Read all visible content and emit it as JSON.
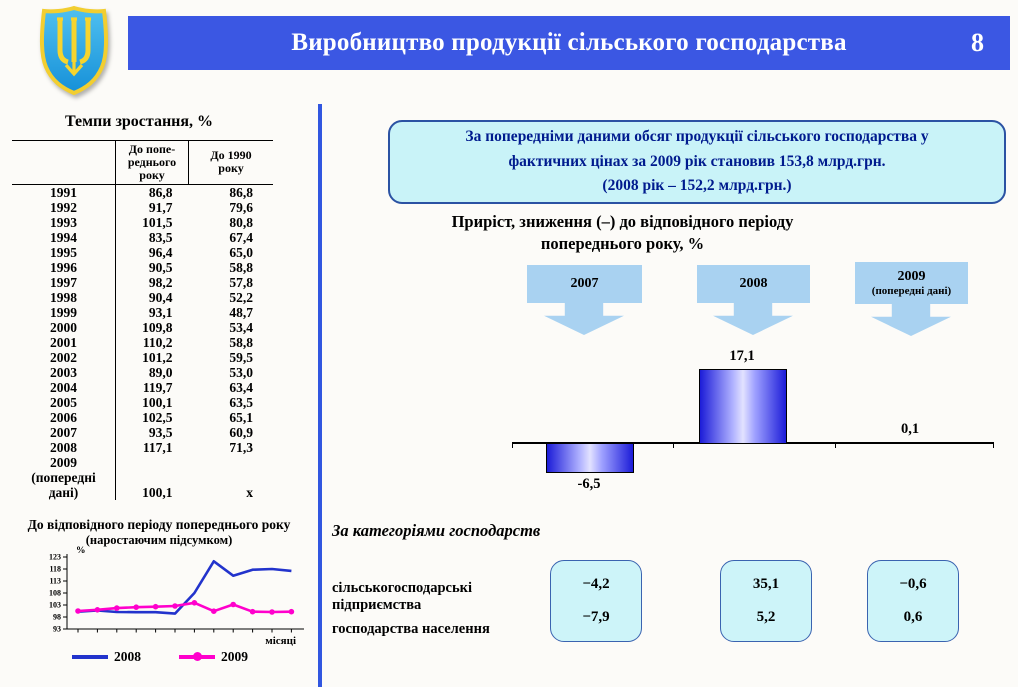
{
  "header": {
    "title": "Виробництво продукції сільського господарства",
    "page_number": "8"
  },
  "colors": {
    "accent_blue": "#3B57E3",
    "divider_blue": "#3156E0",
    "light_blue": "#A9D2F1",
    "cyan_box_bg": "#CDF4F9",
    "cyan_box_border": "#3A63B0",
    "info_text_navy": "#001B8E",
    "bar_edge_blue": "#1C1CD8",
    "series_2008": "#2233CC",
    "series_2009": "#FF00CC",
    "emblem_shield_blue": "#2BA3E4",
    "emblem_trident_yellow": "#F6D42E"
  },
  "emblem": {
    "name": "ukraine-trident-coat-of-arms"
  },
  "info_box": {
    "text": "За попередніми даними обсяг продукції сільського господарства у\nфактичних цінах за 2009 рік становив 153,8 млрд.грн.\n(2008 рік – 152,2 млрд.грн.)"
  },
  "year_boxes": [
    {
      "label": "2007",
      "sublabel": ""
    },
    {
      "label": "2008",
      "sublabel": ""
    },
    {
      "label": "2009",
      "sublabel": "(попередні дані)"
    }
  ],
  "categories_section": {
    "title": "За категоріями господарств",
    "row_labels": [
      "сільськогосподарські\nпідприємства",
      "господарства населення"
    ],
    "boxes": [
      [
        "−4,2",
        "−7,9"
      ],
      [
        "35,1",
        "5,2"
      ],
      [
        "−0,6",
        "0,6"
      ]
    ]
  },
  "chart_data": [
    {
      "type": "table",
      "title": "Темпи зростання, %",
      "columns": [
        "",
        "До попе-\nреднього\nроку",
        "До 1990\nроку"
      ],
      "rows": [
        [
          "1991",
          "86,8",
          "86,8"
        ],
        [
          "1992",
          "91,7",
          "79,6"
        ],
        [
          "1993",
          "101,5",
          "80,8"
        ],
        [
          "1994",
          "83,5",
          "67,4"
        ],
        [
          "1995",
          "96,4",
          "65,0"
        ],
        [
          "1996",
          "90,5",
          "58,8"
        ],
        [
          "1997",
          "98,2",
          "57,8"
        ],
        [
          "1998",
          "90,4",
          "52,2"
        ],
        [
          "1999",
          "93,1",
          "48,7"
        ],
        [
          "2000",
          "109,8",
          "53,4"
        ],
        [
          "2001",
          "110,2",
          "58,8"
        ],
        [
          "2002",
          "101,2",
          "59,5"
        ],
        [
          "2003",
          "89,0",
          "53,0"
        ],
        [
          "2004",
          "119,7",
          "63,4"
        ],
        [
          "2005",
          "100,1",
          "63,5"
        ],
        [
          "2006",
          "102,5",
          "65,1"
        ],
        [
          "2007",
          "93,5",
          "60,9"
        ],
        [
          "2008",
          "117,1",
          "71,3"
        ],
        [
          "2009\n(попередні\nдані)",
          "100,1",
          "х"
        ]
      ]
    },
    {
      "type": "line",
      "title": "До відповідного періоду попереднього року",
      "subtitle": "(наростаючим підсумком)",
      "ylabel": "%",
      "xlabel": "місяці",
      "ylim": [
        93,
        123
      ],
      "yticks": [
        93,
        98,
        103,
        108,
        113,
        118,
        123
      ],
      "x": [
        1,
        2,
        3,
        4,
        5,
        6,
        7,
        8,
        9,
        10,
        11,
        12
      ],
      "grid": false,
      "legend_position": "bottom",
      "series": [
        {
          "name": "2008",
          "color": "#2233CC",
          "marker": "none",
          "values": [
            100.2,
            100.7,
            100.1,
            100.0,
            100.0,
            99.4,
            108.0,
            121.2,
            115.2,
            117.7,
            118.0,
            117.2
          ]
        },
        {
          "name": "2009",
          "color": "#FF00CC",
          "marker": "circle",
          "values": [
            100.5,
            101.0,
            101.7,
            102.1,
            102.3,
            102.6,
            103.9,
            100.4,
            103.2,
            100.2,
            100.1,
            100.2
          ]
        }
      ]
    },
    {
      "type": "bar",
      "title": "Приріст, зниження (–) до відповідного періоду\nпопереднього року, %",
      "categories": [
        "2007",
        "2008",
        "2009 (попередні дані)"
      ],
      "values": [
        -6.5,
        17.1,
        0.1
      ],
      "value_labels": [
        "-6,5",
        "17,1",
        "0,1"
      ],
      "ylim": [
        -10,
        20
      ],
      "grid": false,
      "legend_position": "none"
    }
  ]
}
